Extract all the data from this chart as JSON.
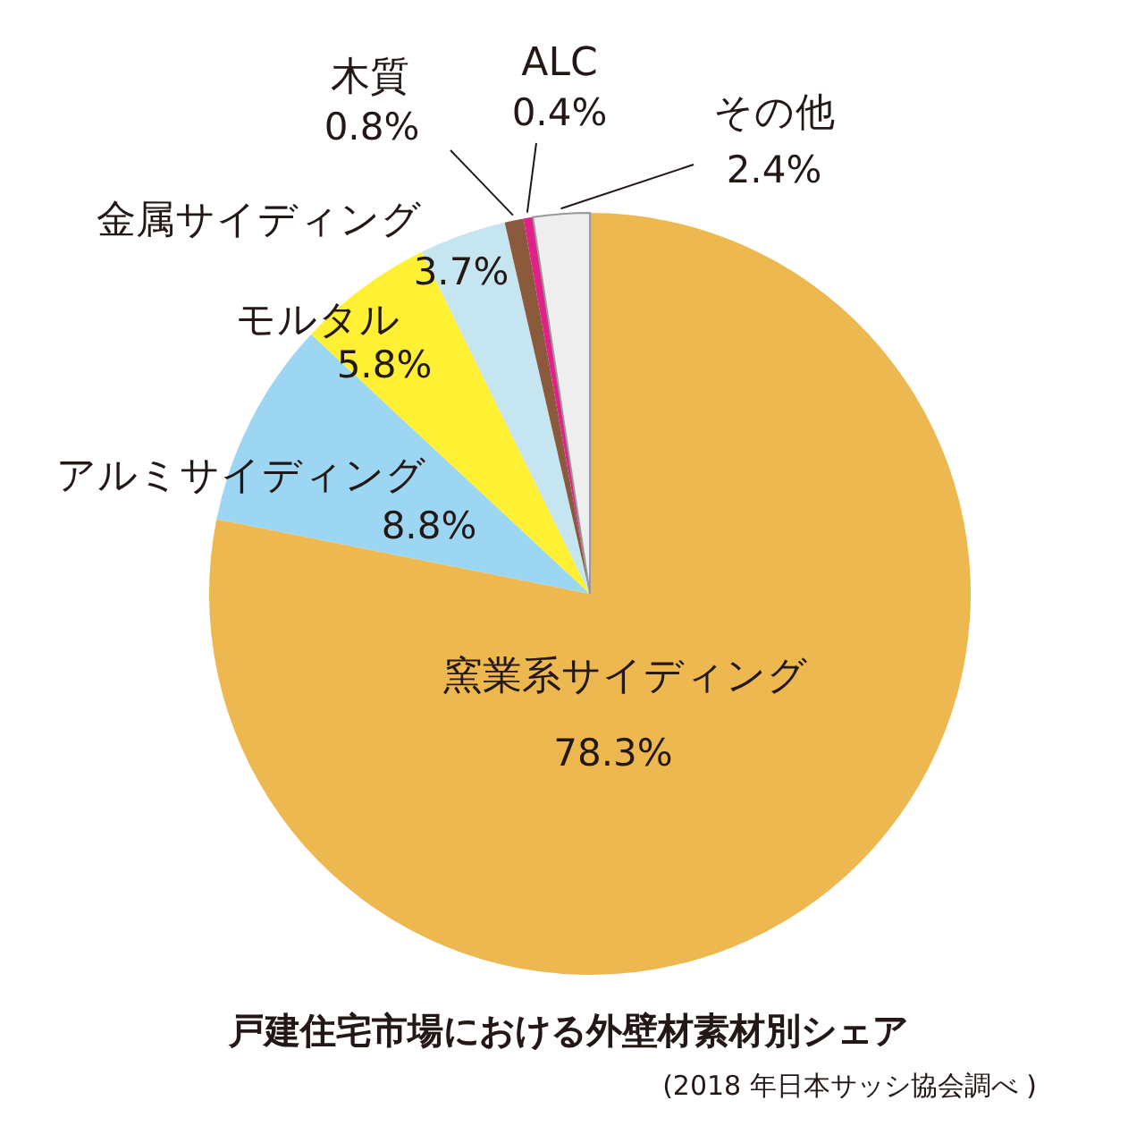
{
  "chart_data": {
    "type": "pie",
    "title": "戸建住宅市場における外壁材素材別シェア",
    "annotations": [
      "(2018 年日本サッシ協会調べ )"
    ],
    "categories": [
      "窯業系サイディング",
      "アルミサイディング",
      "モルタル",
      "金属サイディング",
      "木質",
      "ALC",
      "その他"
    ],
    "values": [
      78.3,
      8.8,
      5.8,
      3.7,
      0.8,
      0.4,
      2.4
    ],
    "value_labels": [
      "78.3%",
      "8.8%",
      "5.8%",
      "3.7%",
      "0.8%",
      "0.4%",
      "2.4%"
    ],
    "colors": [
      "#ecb84f",
      "#9dd6f2",
      "#fff033",
      "#c5e5f0",
      "#8b5a3c",
      "#e0218a",
      "#eeeeee"
    ]
  }
}
